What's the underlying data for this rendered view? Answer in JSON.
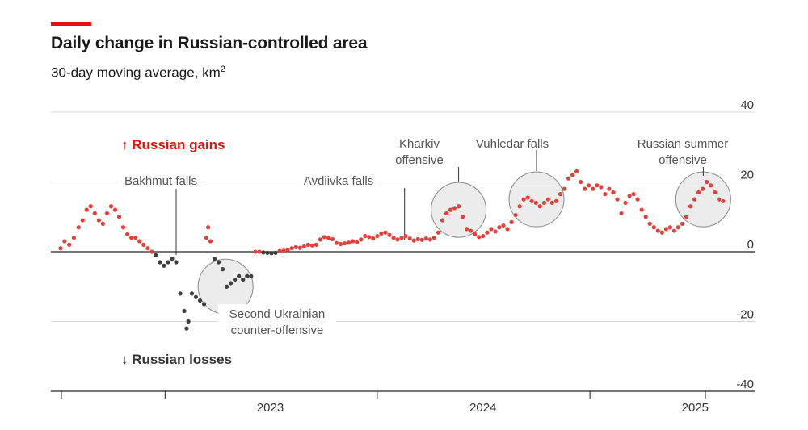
{
  "header": {
    "title": "Daily change in Russian-controlled area",
    "subtitle": "30-day moving average, km",
    "subtitle_sup": "2"
  },
  "colors": {
    "accent": "#e3120b",
    "gain": "#e3403b",
    "loss": "#3f3f3f",
    "circle": "#e6e6e6"
  },
  "labels": {
    "gains": "↑ Russian gains",
    "losses": "↓ Russian losses"
  },
  "chart_data": {
    "type": "scatter",
    "title": "Daily change in Russian-controlled area",
    "subtitle": "30-day moving average, km2",
    "xlabel": "",
    "ylabel": "",
    "xlim": [
      "2022-07-01",
      "2025-09-15"
    ],
    "ylim": [
      -40,
      40
    ],
    "y_ticks": [
      40,
      20,
      0,
      -20,
      -40
    ],
    "x_tick_labels": [
      {
        "label": "2023",
        "date": "2023-07-01"
      },
      {
        "label": "2024",
        "date": "2024-07-01"
      },
      {
        "label": "2025",
        "date": "2025-07-01"
      }
    ],
    "x_year_boundaries": [
      "2023-01-01",
      "2024-01-01",
      "2025-01-01"
    ],
    "grid": "horizontal",
    "series": [
      {
        "key": "daily",
        "points": [
          [
            "2022-07-05",
            1
          ],
          [
            "2022-07-12",
            3
          ],
          [
            "2022-07-20",
            2
          ],
          [
            "2022-07-28",
            4
          ],
          [
            "2022-08-05",
            7
          ],
          [
            "2022-08-12",
            9
          ],
          [
            "2022-08-19",
            12
          ],
          [
            "2022-08-26",
            13
          ],
          [
            "2022-09-02",
            11
          ],
          [
            "2022-09-09",
            9
          ],
          [
            "2022-09-16",
            8
          ],
          [
            "2022-09-23",
            11
          ],
          [
            "2022-09-30",
            13
          ],
          [
            "2022-10-07",
            12
          ],
          [
            "2022-10-14",
            10
          ],
          [
            "2022-10-21",
            7
          ],
          [
            "2022-10-28",
            5
          ],
          [
            "2022-11-04",
            4
          ],
          [
            "2022-11-11",
            4
          ],
          [
            "2022-11-18",
            3
          ],
          [
            "2022-11-25",
            2
          ],
          [
            "2022-12-02",
            1
          ],
          [
            "2022-12-09",
            0
          ],
          [
            "2022-12-16",
            -1
          ],
          [
            "2022-12-23",
            -3
          ],
          [
            "2022-12-30",
            -4
          ],
          [
            "2023-01-06",
            -3
          ],
          [
            "2023-01-13",
            -2
          ],
          [
            "2023-01-20",
            -3
          ],
          [
            "2023-01-27",
            -12
          ],
          [
            "2023-02-03",
            -17
          ],
          [
            "2023-02-07",
            -22
          ],
          [
            "2023-02-10",
            -20
          ],
          [
            "2023-02-16",
            -12
          ],
          [
            "2023-02-23",
            -13
          ],
          [
            "2023-03-02",
            -14
          ],
          [
            "2023-03-09",
            -15
          ],
          [
            "2023-03-13",
            4
          ],
          [
            "2023-03-16",
            7
          ],
          [
            "2023-03-20",
            3
          ],
          [
            "2023-03-27",
            -2
          ],
          [
            "2023-04-03",
            -3
          ],
          [
            "2023-04-10",
            -5
          ],
          [
            "2023-04-17",
            -10
          ],
          [
            "2023-04-24",
            -9
          ],
          [
            "2023-05-01",
            -8
          ],
          [
            "2023-05-08",
            -7
          ],
          [
            "2023-05-15",
            -8
          ],
          [
            "2023-05-22",
            -7
          ],
          [
            "2023-05-29",
            -7
          ],
          [
            "2023-06-05",
            0
          ],
          [
            "2023-06-12",
            0
          ],
          [
            "2023-06-19",
            -0.2
          ],
          [
            "2023-06-26",
            -0.3
          ],
          [
            "2023-07-03",
            -0.4
          ],
          [
            "2023-07-10",
            -0.3
          ],
          [
            "2023-07-17",
            0.2
          ],
          [
            "2023-07-24",
            0.3
          ],
          [
            "2023-07-31",
            0.5
          ],
          [
            "2023-08-07",
            1
          ],
          [
            "2023-08-14",
            1.3
          ],
          [
            "2023-08-21",
            1.1
          ],
          [
            "2023-08-28",
            1.5
          ],
          [
            "2023-09-04",
            2
          ],
          [
            "2023-09-11",
            1.8
          ],
          [
            "2023-09-18",
            2
          ],
          [
            "2023-09-25",
            3.5
          ],
          [
            "2023-10-02",
            4.2
          ],
          [
            "2023-10-09",
            4
          ],
          [
            "2023-10-16",
            3.6
          ],
          [
            "2023-10-23",
            2.5
          ],
          [
            "2023-10-30",
            2.2
          ],
          [
            "2023-11-06",
            2.4
          ],
          [
            "2023-11-13",
            2.6
          ],
          [
            "2023-11-20",
            3
          ],
          [
            "2023-11-27",
            2.7
          ],
          [
            "2023-12-04",
            3.5
          ],
          [
            "2023-12-11",
            4.5
          ],
          [
            "2023-12-18",
            4.2
          ],
          [
            "2023-12-25",
            3.8
          ],
          [
            "2024-01-01",
            4.5
          ],
          [
            "2024-01-08",
            5.2
          ],
          [
            "2024-01-15",
            5.5
          ],
          [
            "2024-01-22",
            4.8
          ],
          [
            "2024-01-29",
            4
          ],
          [
            "2024-02-05",
            3.5
          ],
          [
            "2024-02-12",
            4
          ],
          [
            "2024-02-19",
            4.5
          ],
          [
            "2024-02-26",
            3.8
          ],
          [
            "2024-03-04",
            3.2
          ],
          [
            "2024-03-11",
            3.6
          ],
          [
            "2024-03-18",
            3.4
          ],
          [
            "2024-03-25",
            3.8
          ],
          [
            "2024-04-01",
            3.5
          ],
          [
            "2024-04-08",
            4
          ],
          [
            "2024-04-15",
            5.5
          ],
          [
            "2024-04-22",
            9
          ],
          [
            "2024-04-29",
            11
          ],
          [
            "2024-05-06",
            12
          ],
          [
            "2024-05-13",
            12.5
          ],
          [
            "2024-05-20",
            13
          ],
          [
            "2024-05-27",
            10
          ],
          [
            "2024-06-03",
            6.5
          ],
          [
            "2024-06-10",
            6
          ],
          [
            "2024-06-17",
            5
          ],
          [
            "2024-06-24",
            4.2
          ],
          [
            "2024-07-01",
            4.5
          ],
          [
            "2024-07-08",
            5.5
          ],
          [
            "2024-07-15",
            6.5
          ],
          [
            "2024-07-22",
            5.8
          ],
          [
            "2024-07-29",
            7
          ],
          [
            "2024-08-05",
            7.5
          ],
          [
            "2024-08-12",
            6.5
          ],
          [
            "2024-08-19",
            8.5
          ],
          [
            "2024-08-26",
            10.5
          ],
          [
            "2024-09-02",
            13
          ],
          [
            "2024-09-09",
            15
          ],
          [
            "2024-09-16",
            15.5
          ],
          [
            "2024-09-23",
            14.5
          ],
          [
            "2024-09-30",
            14
          ],
          [
            "2024-10-07",
            13
          ],
          [
            "2024-10-14",
            14
          ],
          [
            "2024-10-21",
            15
          ],
          [
            "2024-10-28",
            14
          ],
          [
            "2024-11-04",
            14.5
          ],
          [
            "2024-11-11",
            16.5
          ],
          [
            "2024-11-18",
            18
          ],
          [
            "2024-11-25",
            21
          ],
          [
            "2024-12-02",
            22
          ],
          [
            "2024-12-09",
            23
          ],
          [
            "2024-12-16",
            20
          ],
          [
            "2024-12-23",
            18
          ],
          [
            "2024-12-30",
            19
          ],
          [
            "2025-01-06",
            18
          ],
          [
            "2025-01-13",
            19
          ],
          [
            "2025-01-20",
            18.5
          ],
          [
            "2025-01-27",
            16.5
          ],
          [
            "2025-02-03",
            18
          ],
          [
            "2025-02-10",
            17
          ],
          [
            "2025-02-17",
            15
          ],
          [
            "2025-02-24",
            11
          ],
          [
            "2025-03-03",
            14
          ],
          [
            "2025-03-10",
            16
          ],
          [
            "2025-03-17",
            16.5
          ],
          [
            "2025-03-24",
            15
          ],
          [
            "2025-03-31",
            12
          ],
          [
            "2025-04-07",
            10
          ],
          [
            "2025-04-14",
            8
          ],
          [
            "2025-04-21",
            7
          ],
          [
            "2025-04-28",
            6
          ],
          [
            "2025-05-05",
            5.5
          ],
          [
            "2025-05-12",
            6.5
          ],
          [
            "2025-05-19",
            7
          ],
          [
            "2025-05-26",
            6
          ],
          [
            "2025-06-02",
            7
          ],
          [
            "2025-06-09",
            8
          ],
          [
            "2025-06-16",
            10
          ],
          [
            "2025-06-23",
            13
          ],
          [
            "2025-06-30",
            15
          ],
          [
            "2025-07-07",
            17
          ],
          [
            "2025-07-14",
            18
          ],
          [
            "2025-07-21",
            20
          ],
          [
            "2025-07-28",
            19
          ],
          [
            "2025-08-04",
            17
          ],
          [
            "2025-08-11",
            15
          ],
          [
            "2025-08-18",
            14.5
          ]
        ]
      }
    ],
    "annotations": [
      {
        "lines": [
          "Bakhmut falls"
        ],
        "date": "2023-01-20"
      },
      {
        "lines": [
          "Avdiivka falls"
        ],
        "date": "2024-02-17"
      },
      {
        "lines": [
          "Second Ukrainian",
          "counter-offensive"
        ],
        "date": "2023-04-15",
        "y": -10
      },
      {
        "lines": [
          "Kharkiv",
          "offensive"
        ],
        "date": "2024-05-20",
        "y": 12
      },
      {
        "lines": [
          "Vuhledar falls"
        ],
        "date": "2024-10-01",
        "y": 15
      },
      {
        "lines": [
          "Russian summer",
          "offensive"
        ],
        "date": "2025-07-15",
        "y": 15
      }
    ]
  }
}
